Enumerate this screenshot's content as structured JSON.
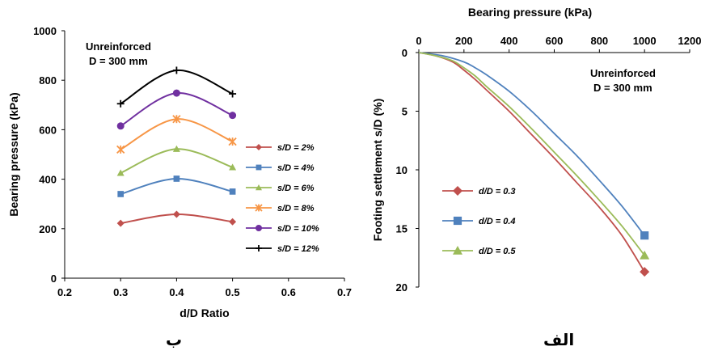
{
  "captions": {
    "left": "ب",
    "right": "الف"
  },
  "chart_data": [
    {
      "type": "line",
      "panel": "left",
      "xlabel": "d/D  Ratio",
      "ylabel": "Bearing pressure (kPa)",
      "xlim": [
        0.2,
        0.7
      ],
      "ylim": [
        0,
        1000
      ],
      "xticks": [
        "0.2",
        "0.3",
        "0.4",
        "0.5",
        "0.6",
        "0.7"
      ],
      "yticks": [
        "0",
        "200",
        "400",
        "600",
        "800",
        "1000"
      ],
      "annotation": [
        "Unreinforced",
        "D = 300 mm"
      ],
      "legend_position": "right",
      "x": [
        0.3,
        0.4,
        0.5
      ],
      "series": [
        {
          "name": "s/D = 2%",
          "color": "#C0504D",
          "marker": "diamond",
          "values": [
            222,
            258,
            228
          ]
        },
        {
          "name": "s/D = 4%",
          "color": "#4F81BD",
          "marker": "square",
          "values": [
            340,
            402,
            350
          ]
        },
        {
          "name": "s/D = 6%",
          "color": "#9BBB59",
          "marker": "triangle",
          "values": [
            425,
            522,
            448
          ]
        },
        {
          "name": "s/D = 8%",
          "color": "#F79646",
          "marker": "star",
          "values": [
            520,
            643,
            552
          ]
        },
        {
          "name": "s/D = 10%",
          "color": "#7030A0",
          "marker": "circle",
          "values": [
            615,
            748,
            658
          ]
        },
        {
          "name": "s/D = 12%",
          "color": "#000000",
          "marker": "plus",
          "values": [
            705,
            840,
            745
          ]
        }
      ]
    },
    {
      "type": "line",
      "panel": "right",
      "xlabel": "Bearing pressure (kPa)",
      "ylabel": "Footing settlement s/D (%)",
      "xlim": [
        0,
        1200
      ],
      "ylim": [
        0,
        20
      ],
      "y_inverted": true,
      "x_axis_position": "top",
      "xticks": [
        "0",
        "200",
        "400",
        "600",
        "800",
        "1000",
        "1200"
      ],
      "yticks": [
        "0",
        "5",
        "10",
        "15",
        "20"
      ],
      "annotation": [
        "Unreinforced",
        "D = 300 mm"
      ],
      "legend_position": "left",
      "series": [
        {
          "name": "d/D = 0.3",
          "color": "#C0504D",
          "marker": "diamond",
          "x": [
            0,
            80,
            150,
            200,
            250,
            300,
            400,
            500,
            600,
            700,
            800,
            900,
            1000
          ],
          "y": [
            0,
            0.3,
            0.8,
            1.5,
            2.3,
            3.2,
            5.0,
            7.0,
            9.0,
            11.1,
            13.2,
            15.6,
            18.7
          ]
        },
        {
          "name": "d/D = 0.4",
          "color": "#4F81BD",
          "marker": "square",
          "x": [
            0,
            100,
            200,
            250,
            300,
            400,
            500,
            600,
            700,
            800,
            900,
            1000
          ],
          "y": [
            0,
            0.25,
            0.8,
            1.3,
            1.9,
            3.3,
            5.0,
            6.9,
            8.8,
            10.9,
            13.1,
            15.6
          ]
        },
        {
          "name": "d/D = 0.5",
          "color": "#9BBB59",
          "marker": "triangle",
          "x": [
            0,
            80,
            150,
            200,
            250,
            300,
            400,
            500,
            600,
            700,
            800,
            900,
            1000
          ],
          "y": [
            0,
            0.3,
            0.7,
            1.3,
            2.0,
            2.9,
            4.6,
            6.5,
            8.5,
            10.5,
            12.6,
            14.8,
            17.3
          ]
        }
      ]
    }
  ]
}
